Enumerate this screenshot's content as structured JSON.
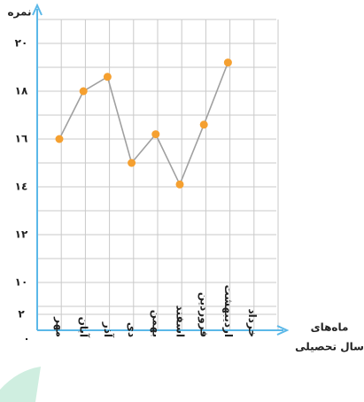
{
  "chart_data": {
    "type": "line",
    "ylabel": "نمره",
    "xlabel": [
      "ماه‌های",
      "سال تحصیلی"
    ],
    "categories": [
      "مهر",
      "آبان",
      "آذر",
      "دی",
      "بهمن",
      "اسفند",
      "فروردین",
      "اردیبهشت",
      "خرداد"
    ],
    "values": [
      16,
      18,
      18.6,
      15,
      16.2,
      14.1,
      16.6,
      19.2,
      null
    ],
    "line_color": "#a0a0a0",
    "marker_color": "#f5a030",
    "axis_color": "#5bb8e8",
    "grid": true,
    "ylim": [
      0,
      20
    ],
    "y_axis_break": true,
    "yticks": [
      {
        "value": 0,
        "label": "٠"
      },
      {
        "value": 2,
        "label": "٢"
      },
      {
        "value": 10,
        "label": "١٠"
      },
      {
        "value": 12,
        "label": "١٢"
      },
      {
        "value": 14,
        "label": "١٤"
      },
      {
        "value": 16,
        "label": "١٦"
      },
      {
        "value": 18,
        "label": "١٨"
      },
      {
        "value": 20,
        "label": "٢٠"
      }
    ]
  }
}
